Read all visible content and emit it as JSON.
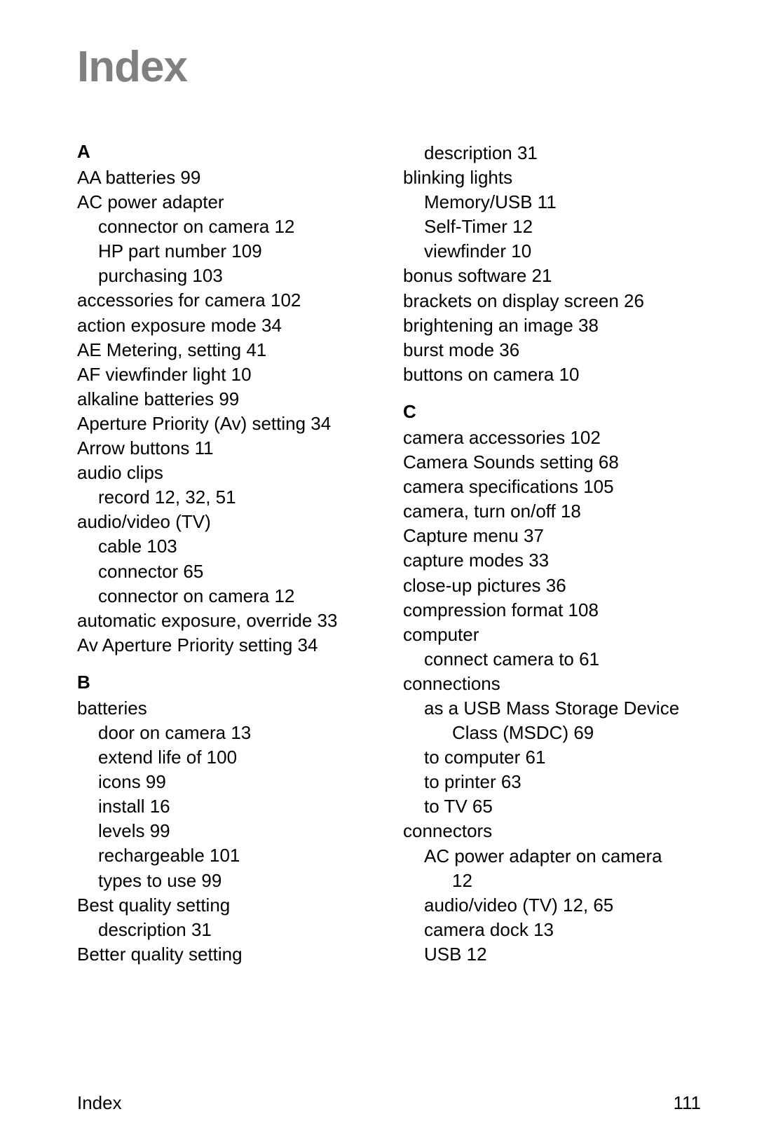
{
  "title": "Index",
  "footer_label": "Index",
  "page_number": "111",
  "left_column": [
    {
      "type": "letter",
      "text": "A"
    },
    {
      "type": "entry",
      "text": "AA batteries 99"
    },
    {
      "type": "entry",
      "text": "AC power adapter"
    },
    {
      "type": "sub",
      "text": "connector on camera 12"
    },
    {
      "type": "sub",
      "text": "HP part number 109"
    },
    {
      "type": "sub",
      "text": "purchasing 103"
    },
    {
      "type": "entry",
      "text": "accessories for camera 102"
    },
    {
      "type": "entry",
      "text": "action exposure mode 34"
    },
    {
      "type": "entry",
      "text": "AE Metering, setting 41"
    },
    {
      "type": "entry",
      "text": "AF viewfinder light 10"
    },
    {
      "type": "entry",
      "text": "alkaline batteries 99"
    },
    {
      "type": "entry",
      "text": "Aperture Priority (Av) setting 34"
    },
    {
      "type": "entry",
      "text": "Arrow buttons 11"
    },
    {
      "type": "entry",
      "text": "audio clips"
    },
    {
      "type": "sub",
      "text": "record 12, 32, 51"
    },
    {
      "type": "entry",
      "text": "audio/video (TV)"
    },
    {
      "type": "sub",
      "text": "cable 103"
    },
    {
      "type": "sub",
      "text": "connector 65"
    },
    {
      "type": "sub",
      "text": "connector on camera 12"
    },
    {
      "type": "entry",
      "text": "automatic exposure, override 33"
    },
    {
      "type": "entry",
      "text": "Av Aperture Priority setting 34"
    },
    {
      "type": "letter",
      "text": "B"
    },
    {
      "type": "entry",
      "text": "batteries"
    },
    {
      "type": "sub",
      "text": "door on camera 13"
    },
    {
      "type": "sub",
      "text": "extend life of 100"
    },
    {
      "type": "sub",
      "text": "icons 99"
    },
    {
      "type": "sub",
      "text": "install 16"
    },
    {
      "type": "sub",
      "text": "levels 99"
    },
    {
      "type": "sub",
      "text": "rechargeable 101"
    },
    {
      "type": "sub",
      "text": "types to use 99"
    },
    {
      "type": "entry",
      "text": "Best quality setting"
    },
    {
      "type": "sub",
      "text": "description 31"
    },
    {
      "type": "entry",
      "text": "Better quality setting"
    }
  ],
  "right_column": [
    {
      "type": "sub",
      "text": "description 31"
    },
    {
      "type": "entry",
      "text": "blinking lights"
    },
    {
      "type": "sub",
      "text": "Memory/USB 11"
    },
    {
      "type": "sub",
      "text": "Self-Timer 12"
    },
    {
      "type": "sub",
      "text": "viewfinder 10"
    },
    {
      "type": "entry",
      "text": "bonus software 21"
    },
    {
      "type": "entry",
      "text": "brackets on display screen 26"
    },
    {
      "type": "entry",
      "text": "brightening an image 38"
    },
    {
      "type": "entry",
      "text": "burst mode 36"
    },
    {
      "type": "entry",
      "text": "buttons on camera 10"
    },
    {
      "type": "letter",
      "text": "C"
    },
    {
      "type": "entry",
      "text": "camera accessories 102"
    },
    {
      "type": "entry",
      "text": "Camera Sounds setting 68"
    },
    {
      "type": "entry",
      "text": "camera specifications 105"
    },
    {
      "type": "entry",
      "text": "camera, turn on/off 18"
    },
    {
      "type": "entry",
      "text": "Capture menu 37"
    },
    {
      "type": "entry",
      "text": "capture modes 33"
    },
    {
      "type": "entry",
      "text": "close-up pictures 36"
    },
    {
      "type": "entry",
      "text": "compression format 108"
    },
    {
      "type": "entry",
      "text": "computer"
    },
    {
      "type": "sub",
      "text": "connect camera to 61"
    },
    {
      "type": "entry",
      "text": "connections"
    },
    {
      "type": "sub",
      "text": "as a USB Mass Storage Device"
    },
    {
      "type": "subsub",
      "text": "Class (MSDC) 69"
    },
    {
      "type": "sub",
      "text": "to computer 61"
    },
    {
      "type": "sub",
      "text": "to printer 63"
    },
    {
      "type": "sub",
      "text": "to TV 65"
    },
    {
      "type": "entry",
      "text": "connectors"
    },
    {
      "type": "sub",
      "text": "AC power adapter on camera"
    },
    {
      "type": "subsub",
      "text": "12"
    },
    {
      "type": "sub",
      "text": "audio/video (TV) 12, 65"
    },
    {
      "type": "sub",
      "text": "camera dock 13"
    },
    {
      "type": "sub",
      "text": "USB 12"
    }
  ]
}
